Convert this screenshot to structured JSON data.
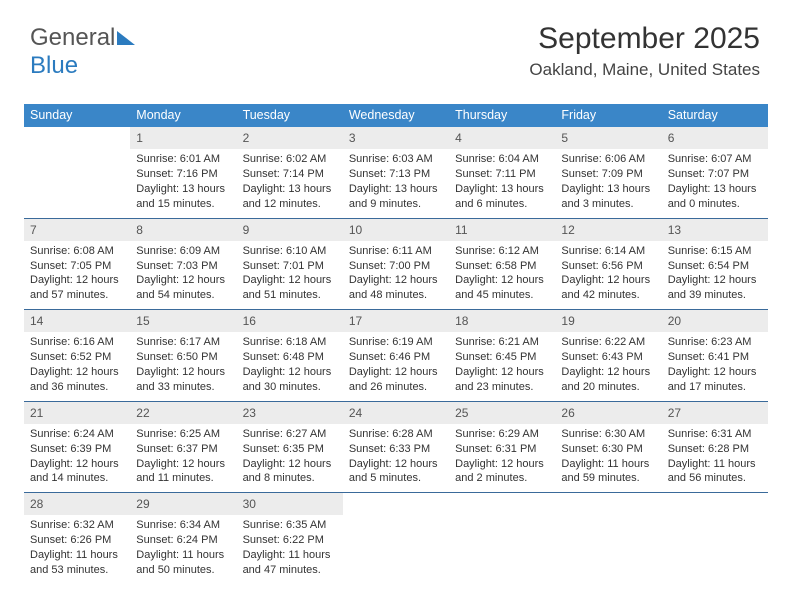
{
  "brand": {
    "part1": "General",
    "part2": "Blue"
  },
  "header": {
    "month_title": "September 2025",
    "location": "Oakland, Maine, United States"
  },
  "calendar": {
    "type": "table",
    "background_color": "#ffffff",
    "header_bg": "#3a86c8",
    "header_fg": "#ffffff",
    "daynum_bg": "#ececec",
    "border_color": "#3a6a9a",
    "title_fontsize": 30,
    "location_fontsize": 17,
    "body_fontsize": 11,
    "columns": [
      "Sunday",
      "Monday",
      "Tuesday",
      "Wednesday",
      "Thursday",
      "Friday",
      "Saturday"
    ],
    "weeks": [
      [
        null,
        {
          "d": "1",
          "sr": "6:01 AM",
          "ss": "7:16 PM",
          "dl": "13 hours and 15 minutes."
        },
        {
          "d": "2",
          "sr": "6:02 AM",
          "ss": "7:14 PM",
          "dl": "13 hours and 12 minutes."
        },
        {
          "d": "3",
          "sr": "6:03 AM",
          "ss": "7:13 PM",
          "dl": "13 hours and 9 minutes."
        },
        {
          "d": "4",
          "sr": "6:04 AM",
          "ss": "7:11 PM",
          "dl": "13 hours and 6 minutes."
        },
        {
          "d": "5",
          "sr": "6:06 AM",
          "ss": "7:09 PM",
          "dl": "13 hours and 3 minutes."
        },
        {
          "d": "6",
          "sr": "6:07 AM",
          "ss": "7:07 PM",
          "dl": "13 hours and 0 minutes."
        }
      ],
      [
        {
          "d": "7",
          "sr": "6:08 AM",
          "ss": "7:05 PM",
          "dl": "12 hours and 57 minutes."
        },
        {
          "d": "8",
          "sr": "6:09 AM",
          "ss": "7:03 PM",
          "dl": "12 hours and 54 minutes."
        },
        {
          "d": "9",
          "sr": "6:10 AM",
          "ss": "7:01 PM",
          "dl": "12 hours and 51 minutes."
        },
        {
          "d": "10",
          "sr": "6:11 AM",
          "ss": "7:00 PM",
          "dl": "12 hours and 48 minutes."
        },
        {
          "d": "11",
          "sr": "6:12 AM",
          "ss": "6:58 PM",
          "dl": "12 hours and 45 minutes."
        },
        {
          "d": "12",
          "sr": "6:14 AM",
          "ss": "6:56 PM",
          "dl": "12 hours and 42 minutes."
        },
        {
          "d": "13",
          "sr": "6:15 AM",
          "ss": "6:54 PM",
          "dl": "12 hours and 39 minutes."
        }
      ],
      [
        {
          "d": "14",
          "sr": "6:16 AM",
          "ss": "6:52 PM",
          "dl": "12 hours and 36 minutes."
        },
        {
          "d": "15",
          "sr": "6:17 AM",
          "ss": "6:50 PM",
          "dl": "12 hours and 33 minutes."
        },
        {
          "d": "16",
          "sr": "6:18 AM",
          "ss": "6:48 PM",
          "dl": "12 hours and 30 minutes."
        },
        {
          "d": "17",
          "sr": "6:19 AM",
          "ss": "6:46 PM",
          "dl": "12 hours and 26 minutes."
        },
        {
          "d": "18",
          "sr": "6:21 AM",
          "ss": "6:45 PM",
          "dl": "12 hours and 23 minutes."
        },
        {
          "d": "19",
          "sr": "6:22 AM",
          "ss": "6:43 PM",
          "dl": "12 hours and 20 minutes."
        },
        {
          "d": "20",
          "sr": "6:23 AM",
          "ss": "6:41 PM",
          "dl": "12 hours and 17 minutes."
        }
      ],
      [
        {
          "d": "21",
          "sr": "6:24 AM",
          "ss": "6:39 PM",
          "dl": "12 hours and 14 minutes."
        },
        {
          "d": "22",
          "sr": "6:25 AM",
          "ss": "6:37 PM",
          "dl": "12 hours and 11 minutes."
        },
        {
          "d": "23",
          "sr": "6:27 AM",
          "ss": "6:35 PM",
          "dl": "12 hours and 8 minutes."
        },
        {
          "d": "24",
          "sr": "6:28 AM",
          "ss": "6:33 PM",
          "dl": "12 hours and 5 minutes."
        },
        {
          "d": "25",
          "sr": "6:29 AM",
          "ss": "6:31 PM",
          "dl": "12 hours and 2 minutes."
        },
        {
          "d": "26",
          "sr": "6:30 AM",
          "ss": "6:30 PM",
          "dl": "11 hours and 59 minutes."
        },
        {
          "d": "27",
          "sr": "6:31 AM",
          "ss": "6:28 PM",
          "dl": "11 hours and 56 minutes."
        }
      ],
      [
        {
          "d": "28",
          "sr": "6:32 AM",
          "ss": "6:26 PM",
          "dl": "11 hours and 53 minutes."
        },
        {
          "d": "29",
          "sr": "6:34 AM",
          "ss": "6:24 PM",
          "dl": "11 hours and 50 minutes."
        },
        {
          "d": "30",
          "sr": "6:35 AM",
          "ss": "6:22 PM",
          "dl": "11 hours and 47 minutes."
        },
        null,
        null,
        null,
        null
      ]
    ]
  },
  "labels": {
    "sunrise": "Sunrise:",
    "sunset": "Sunset:",
    "daylight": "Daylight:"
  }
}
